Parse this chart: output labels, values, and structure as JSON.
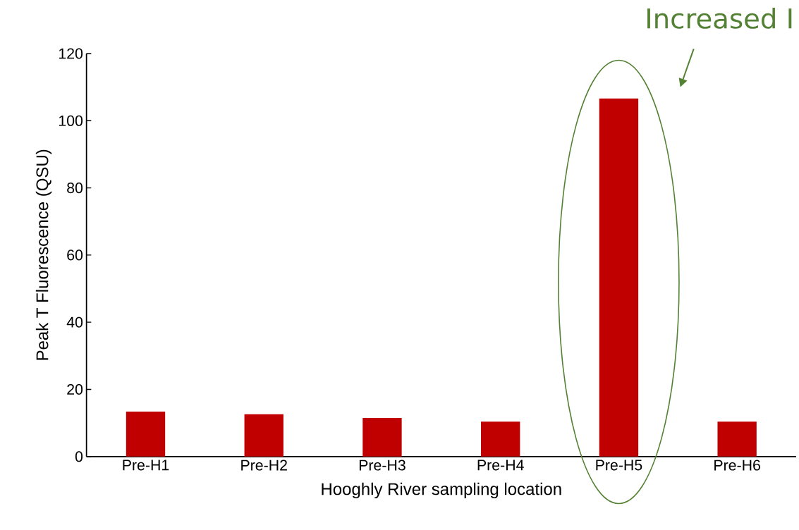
{
  "chart_data": {
    "type": "bar",
    "xlabel": "Hooghly River sampling location",
    "ylabel": "Peak T Fluorescence (QSU)",
    "categories": [
      "Pre-H1",
      "Pre-H2",
      "Pre-H3",
      "Pre-H4",
      "Pre-H5",
      "Pre-H6"
    ],
    "values": [
      13.4,
      12.6,
      11.5,
      10.4,
      106.6,
      10.4
    ],
    "color": "#c00000",
    "ylim": [
      0,
      120
    ],
    "yticks": [
      0,
      20,
      40,
      60,
      80,
      100,
      120
    ],
    "annotations": [
      "Increased I"
    ]
  }
}
